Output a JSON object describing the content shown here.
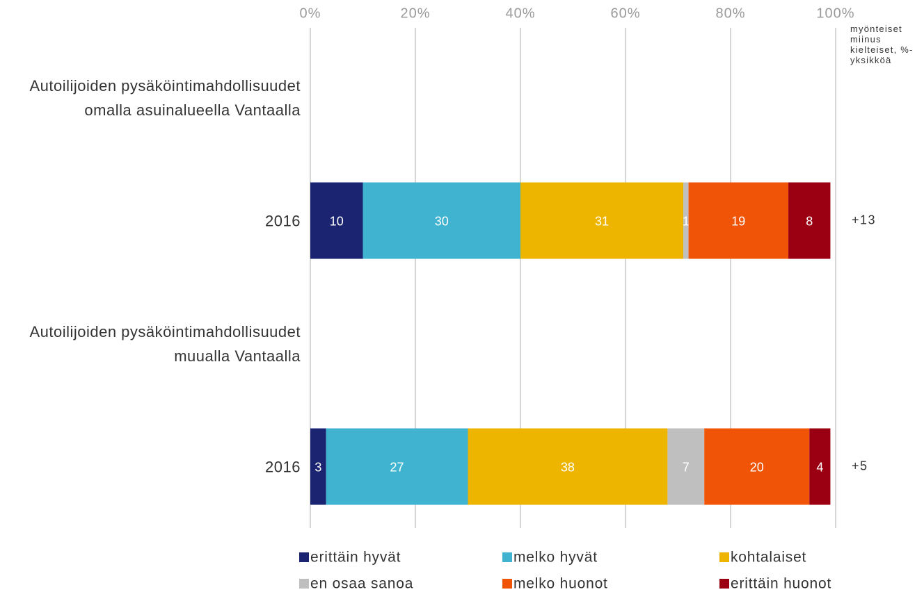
{
  "chart_data": {
    "type": "stacked_barh",
    "categories": [
      "Autoilijoiden pysäköintimahdollisuudet omalla asuinalueella Vantaalla",
      "2016",
      "Autoilijoiden pysäköintimahdollisuudet muualla Vantaalla",
      "2016"
    ],
    "series": [
      {
        "name": "erittäin hyvät",
        "color": "#1a2470",
        "values": [
          null,
          10,
          null,
          3
        ]
      },
      {
        "name": "melko hyvät",
        "color": "#3fb3cf",
        "values": [
          null,
          30,
          null,
          27
        ]
      },
      {
        "name": "kohtalaiset",
        "color": "#edb500",
        "values": [
          null,
          31,
          null,
          38
        ]
      },
      {
        "name": "en osaa sanoa",
        "color": "#bfbfbf",
        "values": [
          null,
          1,
          null,
          7
        ]
      },
      {
        "name": "melko huonot",
        "color": "#f05406",
        "values": [
          null,
          19,
          null,
          20
        ]
      },
      {
        "name": "erittäin huonot",
        "color": "#9b0012",
        "values": [
          null,
          8,
          null,
          4
        ]
      }
    ],
    "xlim": [
      0,
      100
    ],
    "xticks": [
      {
        "value": 0,
        "label": "0%"
      },
      {
        "value": 20,
        "label": "20%"
      },
      {
        "value": 40,
        "label": "40%"
      },
      {
        "value": 60,
        "label": "60%"
      },
      {
        "value": 80,
        "label": "80%"
      },
      {
        "value": 100,
        "label": "100%"
      }
    ],
    "grid": true,
    "net": {
      "title": "myönteiset miinus kielteiset, %-yksikköä",
      "values": [
        null,
        13,
        null,
        5
      ],
      "value_labels": [
        null,
        "+13",
        null,
        "+5"
      ]
    },
    "legend": "bottom"
  }
}
